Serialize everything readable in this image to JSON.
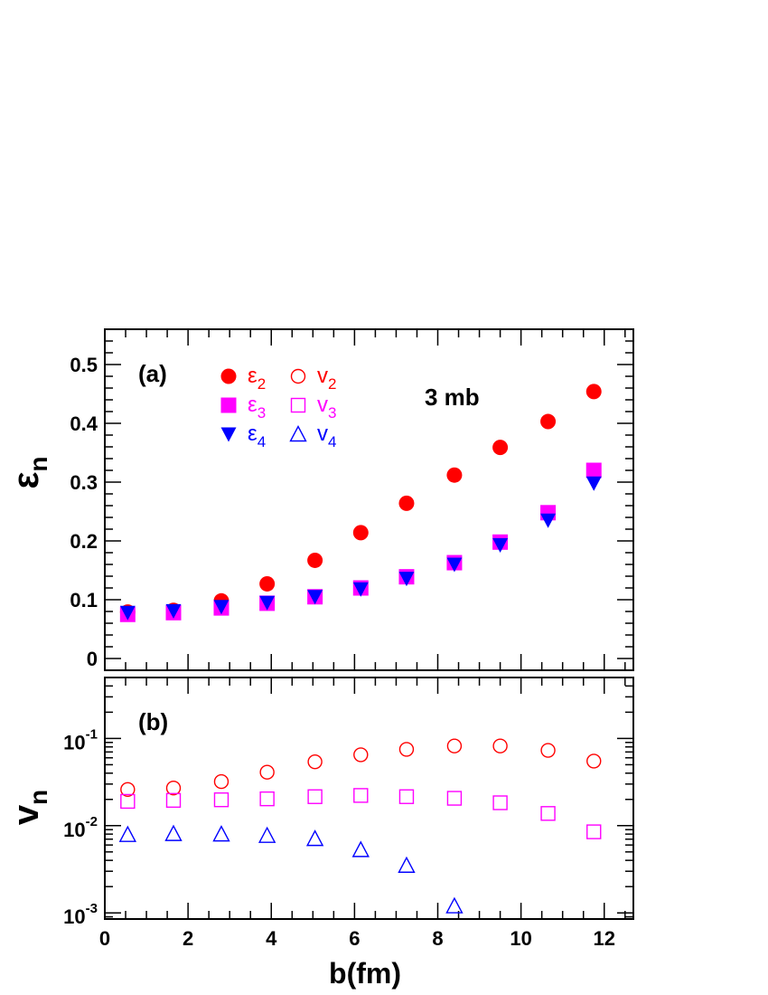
{
  "chart_data": [
    {
      "panel": "(a)",
      "type": "scatter",
      "ylabel": "ε",
      "ylabel_sub": "n",
      "ylim": [
        -0.02,
        0.56
      ],
      "xlim": [
        0,
        12.7
      ],
      "yticks": [
        0,
        0.1,
        0.2,
        0.3,
        0.4,
        0.5
      ],
      "ytick_labels": [
        "0",
        "0.1",
        "0.2",
        "0.3",
        "0.4",
        "0.5"
      ],
      "annotation": "3 mb",
      "x": [
        0.55,
        1.65,
        2.8,
        3.9,
        5.05,
        6.15,
        7.25,
        8.4,
        9.5,
        10.65,
        11.75
      ],
      "series": [
        {
          "name": "ε",
          "sub": "2",
          "color": "#ff0000",
          "marker": "circle-filled",
          "values": [
            0.079,
            0.082,
            0.098,
            0.127,
            0.167,
            0.214,
            0.264,
            0.312,
            0.359,
            0.403,
            0.454
          ]
        },
        {
          "name": "ε",
          "sub": "3",
          "color": "#ff00ff",
          "marker": "square-filled",
          "values": [
            0.075,
            0.078,
            0.086,
            0.094,
            0.105,
            0.12,
            0.139,
            0.163,
            0.198,
            0.248,
            0.32
          ]
        },
        {
          "name": "ε",
          "sub": "4",
          "color": "#0000ff",
          "marker": "triangle-down-filled",
          "values": [
            0.078,
            0.081,
            0.088,
            0.095,
            0.105,
            0.118,
            0.136,
            0.16,
            0.193,
            0.235,
            0.298
          ]
        }
      ]
    },
    {
      "panel": "(b)",
      "type": "scatter",
      "ylabel": "v",
      "ylabel_sub": "n",
      "yscale": "log",
      "ylim": [
        0.00085,
        0.5
      ],
      "xlim": [
        0,
        12.7
      ],
      "yticks": [
        0.001,
        0.01,
        0.1
      ],
      "ytick_labels": [
        {
          "base": "10",
          "exp": "-3"
        },
        {
          "base": "10",
          "exp": "-2"
        },
        {
          "base": "10",
          "exp": "-1"
        }
      ],
      "x": [
        0.55,
        1.65,
        2.8,
        3.9,
        5.05,
        6.15,
        7.25,
        8.4,
        9.5,
        10.65,
        11.75
      ],
      "series": [
        {
          "name": "v",
          "sub": "2",
          "color": "#ff0000",
          "marker": "circle-open",
          "values": [
            0.026,
            0.027,
            0.032,
            0.041,
            0.054,
            0.065,
            0.075,
            0.082,
            0.082,
            0.073,
            0.055
          ]
        },
        {
          "name": "v",
          "sub": "3",
          "color": "#ff00ff",
          "marker": "square-open",
          "values": [
            0.019,
            0.0195,
            0.0198,
            0.0203,
            0.0215,
            0.0222,
            0.0215,
            0.0206,
            0.0183,
            0.0138,
            0.0085
          ]
        },
        {
          "name": "v",
          "sub": "4",
          "color": "#0000ff",
          "marker": "triangle-up-open",
          "values": [
            0.0079,
            0.0081,
            0.008,
            0.0077,
            0.0071,
            0.0053,
            0.0035,
            0.0012,
            null,
            null,
            null
          ]
        }
      ]
    }
  ],
  "x_axis": {
    "label": "b(fm)",
    "ticks": [
      0,
      2,
      4,
      6,
      8,
      10,
      12
    ],
    "tick_labels": [
      "0",
      "2",
      "4",
      "6",
      "8",
      "10",
      "12"
    ]
  },
  "legend": {
    "placement": "top-left",
    "entries": [
      {
        "series": "ε2",
        "text": "ε",
        "sub": "2"
      },
      {
        "series": "v2",
        "text": "v",
        "sub": "2"
      },
      {
        "series": "ε3",
        "text": "ε",
        "sub": "3"
      },
      {
        "series": "v3",
        "text": "v",
        "sub": "3"
      },
      {
        "series": "ε4",
        "text": "ε",
        "sub": "4"
      },
      {
        "series": "v4",
        "text": "v",
        "sub": "4"
      }
    ]
  }
}
